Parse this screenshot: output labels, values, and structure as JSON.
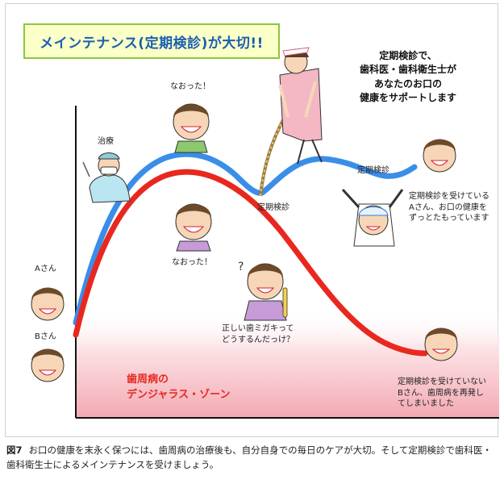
{
  "title": "メインテナンス(定期検診)が大切!!",
  "message_lines": [
    "定期検診で、",
    "歯科医・歯科衛生士が",
    "あなたのお口の",
    "健康をサポートします"
  ],
  "labels": {
    "treatment": "治療",
    "cured_top": "なおった！",
    "cured_mid": "なおった！",
    "checkup_1": "定期検診",
    "checkup_2": "定期検診",
    "person_a": "Aさん",
    "person_b": "Bさん",
    "question": [
      "正しい歯ミガキって",
      "どうするんだっけ？"
    ],
    "a_note": [
      "定期検診を受けている",
      "Aさん、お口の健康を",
      "ずっとたもっています"
    ],
    "b_note": [
      "定期検診を受けていない",
      "Bさん、歯周病を再発し",
      "てしまいました"
    ]
  },
  "danger_zone": [
    "歯周病の",
    "デンジャラス・ゾーン"
  ],
  "caption": {
    "number": "図7",
    "text": "お口の健康を末永く保つには、歯周病の治療後も、自分自身での毎日のケアが大切。そして定期検診で歯科医・歯科衛生士によるメインテナンスを受けましょう。"
  },
  "colors": {
    "blue_curve": "#3a8ee8",
    "red_curve": "#e8281f",
    "title_border": "#8cc63f",
    "title_text": "#1a5fb0"
  }
}
